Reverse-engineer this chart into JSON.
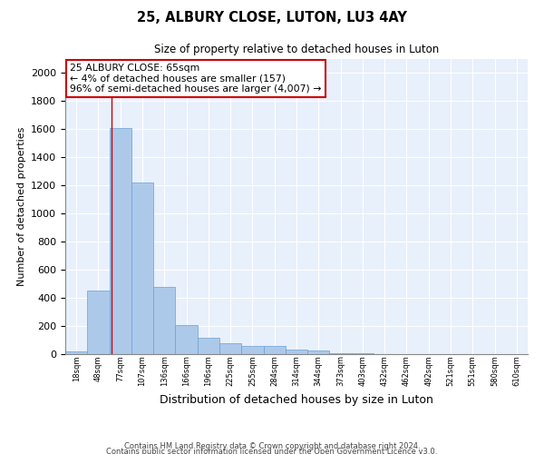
{
  "title": "25, ALBURY CLOSE, LUTON, LU3 4AY",
  "subtitle": "Size of property relative to detached houses in Luton",
  "xlabel": "Distribution of detached houses by size in Luton",
  "ylabel": "Number of detached properties",
  "footer1": "Contains HM Land Registry data © Crown copyright and database right 2024.",
  "footer2": "Contains public sector information licensed under the Open Government Licence v3.0.",
  "bin_labels": [
    "18sqm",
    "48sqm",
    "77sqm",
    "107sqm",
    "136sqm",
    "166sqm",
    "196sqm",
    "225sqm",
    "255sqm",
    "284sqm",
    "314sqm",
    "344sqm",
    "373sqm",
    "403sqm",
    "432sqm",
    "462sqm",
    "492sqm",
    "521sqm",
    "551sqm",
    "580sqm",
    "610sqm"
  ],
  "bar_values": [
    20,
    455,
    1610,
    1220,
    480,
    205,
    115,
    80,
    60,
    55,
    30,
    25,
    8,
    6,
    3,
    2,
    1,
    1,
    0,
    0,
    0
  ],
  "bar_color": "#adc9ea",
  "bar_edge_color": "#6a9fd4",
  "bg_color": "#e8f0fb",
  "grid_color": "#ffffff",
  "annotation_text": "25 ALBURY CLOSE: 65sqm\n← 4% of detached houses are smaller (157)\n96% of semi-detached houses are larger (4,007) →",
  "annotation_box_color": "#cc0000",
  "property_line_x": 1.62,
  "ylim": [
    0,
    2100
  ],
  "yticks": [
    0,
    200,
    400,
    600,
    800,
    1000,
    1200,
    1400,
    1600,
    1800,
    2000
  ],
  "fig_width": 6.0,
  "fig_height": 5.0,
  "dpi": 100
}
